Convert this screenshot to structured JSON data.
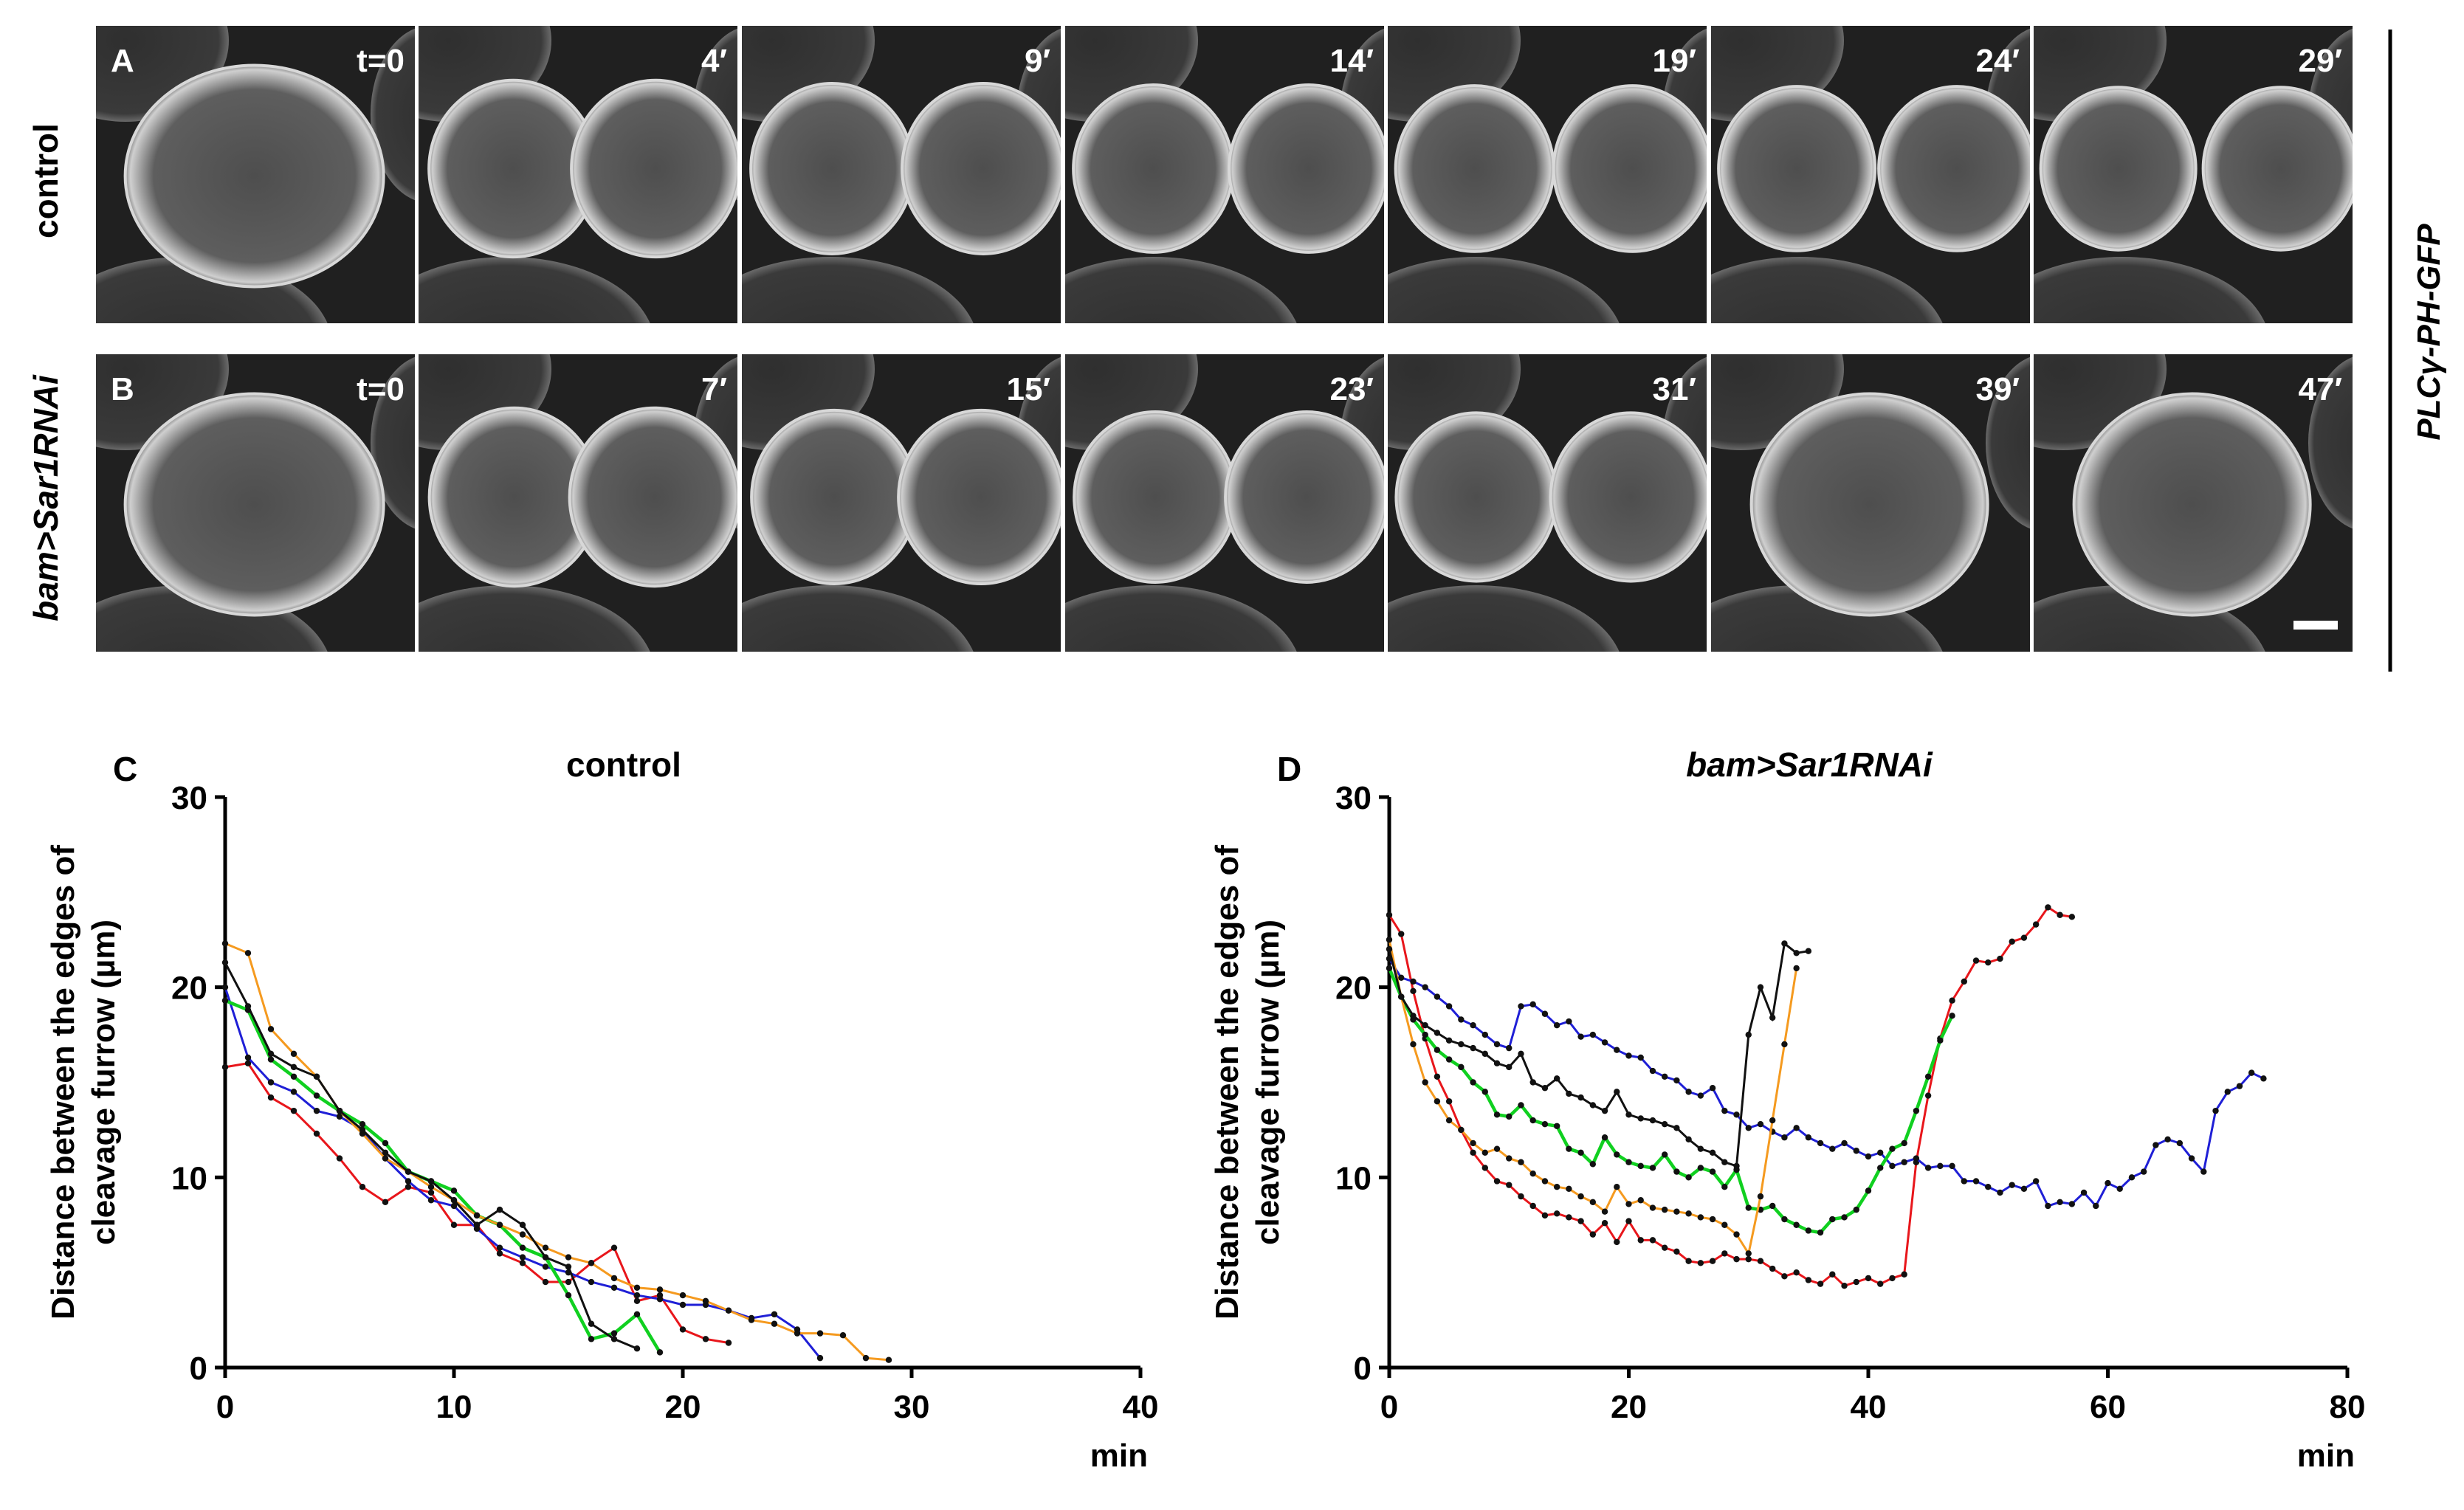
{
  "panels": {
    "row_a": {
      "letter": "A",
      "label": "control",
      "times": [
        "t=0",
        "4′",
        "9′",
        "14′",
        "19′",
        "24′",
        "29′"
      ]
    },
    "row_b": {
      "letter": "B",
      "label": "bam>Sar1RNAi",
      "times": [
        "t=0",
        "7′",
        "15′",
        "23′",
        "31′",
        "39′",
        "47′"
      ]
    },
    "side_label": "PLCγ-PH-GFP"
  },
  "colors": {
    "red": "#e8161b",
    "blue": "#1f1fd6",
    "green": "#10d020",
    "orange": "#f59a1f",
    "black": "#111111"
  },
  "chart_data": [
    {
      "panel": "C",
      "type": "line",
      "title": "control",
      "ylabel": "Distance between the edges of cleavage furrow (µm)",
      "xlabel": "min",
      "xlim": [
        0,
        40
      ],
      "ylim": [
        0,
        30
      ],
      "xticks": [
        0,
        10,
        20,
        30,
        40
      ],
      "yticks": [
        0,
        10,
        20,
        30
      ],
      "series": [
        {
          "color": "red",
          "x": [
            0,
            1,
            2,
            3,
            4,
            5,
            6,
            7,
            8,
            9,
            10,
            11,
            12,
            13,
            14,
            15,
            16,
            17,
            18,
            19,
            20,
            21,
            22
          ],
          "y": [
            15.8,
            16,
            14.2,
            13.5,
            12.3,
            11,
            9.5,
            8.7,
            9.5,
            9.2,
            7.5,
            7.5,
            6,
            5.5,
            4.5,
            4.5,
            5.5,
            6.3,
            3.5,
            3.8,
            2,
            1.5,
            1.3
          ]
        },
        {
          "color": "blue",
          "x": [
            0,
            1,
            2,
            3,
            4,
            5,
            6,
            7,
            8,
            9,
            10,
            11,
            12,
            13,
            14,
            15,
            16,
            17,
            18,
            19,
            20,
            21,
            22,
            23,
            24,
            25,
            26
          ],
          "y": [
            20,
            16.3,
            15,
            14.5,
            13.5,
            13.2,
            12.5,
            11,
            9.8,
            8.8,
            8.5,
            7.3,
            6.3,
            5.8,
            5.3,
            5,
            4.5,
            4.2,
            3.8,
            3.6,
            3.3,
            3.3,
            3,
            2.6,
            2.8,
            2,
            0.5
          ]
        },
        {
          "color": "green",
          "x": [
            0,
            1,
            2,
            3,
            4,
            5,
            6,
            7,
            8,
            9,
            10,
            11,
            12,
            13,
            14,
            15,
            16,
            17,
            18,
            19
          ],
          "y": [
            19.3,
            18.8,
            16.2,
            15.3,
            14.3,
            13.5,
            12.8,
            11.8,
            10.3,
            9.8,
            9.3,
            8,
            7.5,
            6.3,
            5.8,
            3.8,
            1.5,
            1.8,
            2.8,
            0.8
          ]
        },
        {
          "color": "orange",
          "x": [
            0,
            1,
            2,
            3,
            4,
            5,
            6,
            7,
            8,
            9,
            10,
            11,
            12,
            13,
            14,
            15,
            16,
            17,
            18,
            19,
            20,
            21,
            22,
            23,
            24,
            25,
            26,
            27,
            28,
            29
          ],
          "y": [
            22.3,
            21.8,
            17.8,
            16.5,
            15.3,
            13.5,
            12.3,
            11,
            10.3,
            9.5,
            8.8,
            8,
            7.5,
            7,
            6.3,
            5.8,
            5.5,
            4.7,
            4.2,
            4.1,
            3.8,
            3.5,
            3,
            2.5,
            2.3,
            1.8,
            1.8,
            1.7,
            0.5,
            0.4
          ]
        },
        {
          "color": "black",
          "x": [
            0,
            1,
            2,
            3,
            4,
            5,
            6,
            7,
            8,
            9,
            10,
            11,
            12,
            13,
            14,
            15,
            16,
            17,
            18
          ],
          "y": [
            21.3,
            19,
            16.5,
            15.8,
            15.3,
            13.5,
            12.5,
            11.3,
            10.3,
            9.8,
            8.8,
            7.5,
            8.3,
            7.5,
            5.8,
            5.3,
            2.3,
            1.5,
            1
          ]
        }
      ]
    },
    {
      "panel": "D",
      "type": "line",
      "title": "bam>Sar1RNAi",
      "ylabel": "Distance between the edges of cleavage furrow (µm)",
      "xlabel": "min",
      "xlim": [
        0,
        80
      ],
      "ylim": [
        0,
        30
      ],
      "xticks": [
        0,
        20,
        40,
        60,
        80
      ],
      "yticks": [
        0,
        10,
        20,
        30
      ],
      "series": [
        {
          "color": "red",
          "x": [
            0,
            1,
            2,
            3,
            4,
            5,
            6,
            7,
            8,
            9,
            10,
            11,
            12,
            13,
            14,
            15,
            16,
            17,
            18,
            19,
            20,
            21,
            22,
            23,
            24,
            25,
            26,
            27,
            28,
            29,
            30,
            31,
            32,
            33,
            34,
            35,
            36,
            37,
            38,
            39,
            40,
            41,
            42,
            43,
            44,
            45,
            46,
            47,
            48,
            49,
            50,
            51,
            52,
            53,
            54,
            55,
            56,
            57
          ],
          "y": [
            23.8,
            22.8,
            19.8,
            17.3,
            15.3,
            14,
            12.5,
            11.3,
            10.5,
            9.8,
            9.6,
            9,
            8.5,
            8,
            8.1,
            7.9,
            7.7,
            7,
            7.6,
            6.6,
            7.7,
            6.7,
            6.7,
            6.3,
            6.1,
            5.6,
            5.5,
            5.6,
            6,
            5.7,
            5.7,
            5.6,
            5.2,
            4.8,
            5,
            4.6,
            4.4,
            4.9,
            4.3,
            4.5,
            4.7,
            4.4,
            4.7,
            4.9,
            10.8,
            14.3,
            17.3,
            19.3,
            20.3,
            21.4,
            21.3,
            21.5,
            22.4,
            22.6,
            23.3,
            24.2,
            23.8,
            23.7
          ]
        },
        {
          "color": "blue",
          "x": [
            0,
            1,
            2,
            3,
            4,
            5,
            6,
            7,
            8,
            9,
            10,
            11,
            12,
            13,
            14,
            15,
            16,
            17,
            18,
            19,
            20,
            21,
            22,
            23,
            24,
            25,
            26,
            27,
            28,
            29,
            30,
            31,
            32,
            33,
            34,
            35,
            36,
            37,
            38,
            39,
            40,
            41,
            42,
            43,
            44,
            45,
            46,
            47,
            48,
            49,
            50,
            51,
            52,
            53,
            54,
            55,
            56,
            57,
            58,
            59,
            60,
            61,
            62,
            63,
            64,
            65,
            66,
            67,
            68,
            69,
            70,
            71,
            72,
            73
          ],
          "y": [
            21.5,
            20.5,
            20.3,
            20,
            19.5,
            19,
            18.3,
            18,
            17.5,
            17,
            16.8,
            19,
            19.1,
            18.6,
            18,
            18.2,
            17.4,
            17.5,
            17.1,
            16.7,
            16.4,
            16.3,
            15.6,
            15.3,
            15.1,
            14.5,
            14.3,
            14.7,
            13.5,
            13.3,
            12.6,
            12.8,
            12.4,
            12.1,
            12.6,
            12.1,
            11.8,
            11.5,
            11.8,
            11.4,
            11.1,
            11.3,
            10.6,
            10.8,
            11,
            10.5,
            10.6,
            10.6,
            9.8,
            9.8,
            9.5,
            9.2,
            9.6,
            9.4,
            9.8,
            8.5,
            8.7,
            8.6,
            9.2,
            8.5,
            9.7,
            9.4,
            10,
            10.3,
            11.7,
            12,
            11.8,
            11,
            10.3,
            13.5,
            14.5,
            14.8,
            15.5,
            15.2
          ]
        },
        {
          "color": "green",
          "x": [
            0,
            1,
            2,
            3,
            4,
            5,
            6,
            7,
            8,
            9,
            10,
            11,
            12,
            13,
            14,
            15,
            16,
            17,
            18,
            19,
            20,
            21,
            22,
            23,
            24,
            25,
            26,
            27,
            28,
            29,
            30,
            31,
            32,
            33,
            34,
            35,
            36,
            37,
            38,
            39,
            40,
            41,
            42,
            43,
            44,
            45,
            46,
            47
          ],
          "y": [
            21,
            19.5,
            18.3,
            17.5,
            16.7,
            16.2,
            15.8,
            15,
            14.5,
            13.3,
            13.2,
            13.8,
            13,
            12.8,
            12.7,
            11.5,
            11.3,
            10.7,
            12.1,
            11.2,
            10.8,
            10.6,
            10.5,
            11.2,
            10.3,
            10,
            10.5,
            10.3,
            9.5,
            10.4,
            8.4,
            8.3,
            8.5,
            7.8,
            7.5,
            7.2,
            7.1,
            7.8,
            7.9,
            8.3,
            9.3,
            10.5,
            11.5,
            11.8,
            13.5,
            15.3,
            17.2,
            18.5
          ]
        },
        {
          "color": "orange",
          "x": [
            0,
            1,
            2,
            3,
            4,
            5,
            6,
            7,
            8,
            9,
            10,
            11,
            12,
            13,
            14,
            15,
            16,
            17,
            18,
            19,
            20,
            21,
            22,
            23,
            24,
            25,
            26,
            27,
            28,
            29,
            30,
            31,
            32,
            33,
            34
          ],
          "y": [
            22.5,
            19.5,
            17,
            15,
            14,
            13,
            12.5,
            11.8,
            11.3,
            11.5,
            11,
            10.8,
            10.2,
            9.8,
            9.5,
            9.4,
            9,
            8.7,
            8.2,
            9.5,
            8.6,
            8.8,
            8.4,
            8.3,
            8.2,
            8.1,
            7.9,
            7.8,
            7.5,
            7,
            6,
            9,
            13,
            17,
            21
          ]
        },
        {
          "color": "black",
          "x": [
            0,
            1,
            2,
            3,
            4,
            5,
            6,
            7,
            8,
            9,
            10,
            11,
            12,
            13,
            14,
            15,
            16,
            17,
            18,
            19,
            20,
            21,
            22,
            23,
            24,
            25,
            26,
            27,
            28,
            29,
            30,
            31,
            32,
            33,
            34,
            35
          ],
          "y": [
            22,
            19.5,
            18.5,
            18,
            17.6,
            17.2,
            17,
            16.8,
            16.5,
            16,
            15.8,
            16.5,
            15,
            14.7,
            15.2,
            14.4,
            14.2,
            13.8,
            13.5,
            14.5,
            13.3,
            13.1,
            13,
            12.8,
            12.6,
            12,
            11.5,
            11.3,
            10.8,
            10.6,
            17.5,
            20,
            18.4,
            22.3,
            21.8,
            21.9
          ]
        }
      ]
    }
  ]
}
